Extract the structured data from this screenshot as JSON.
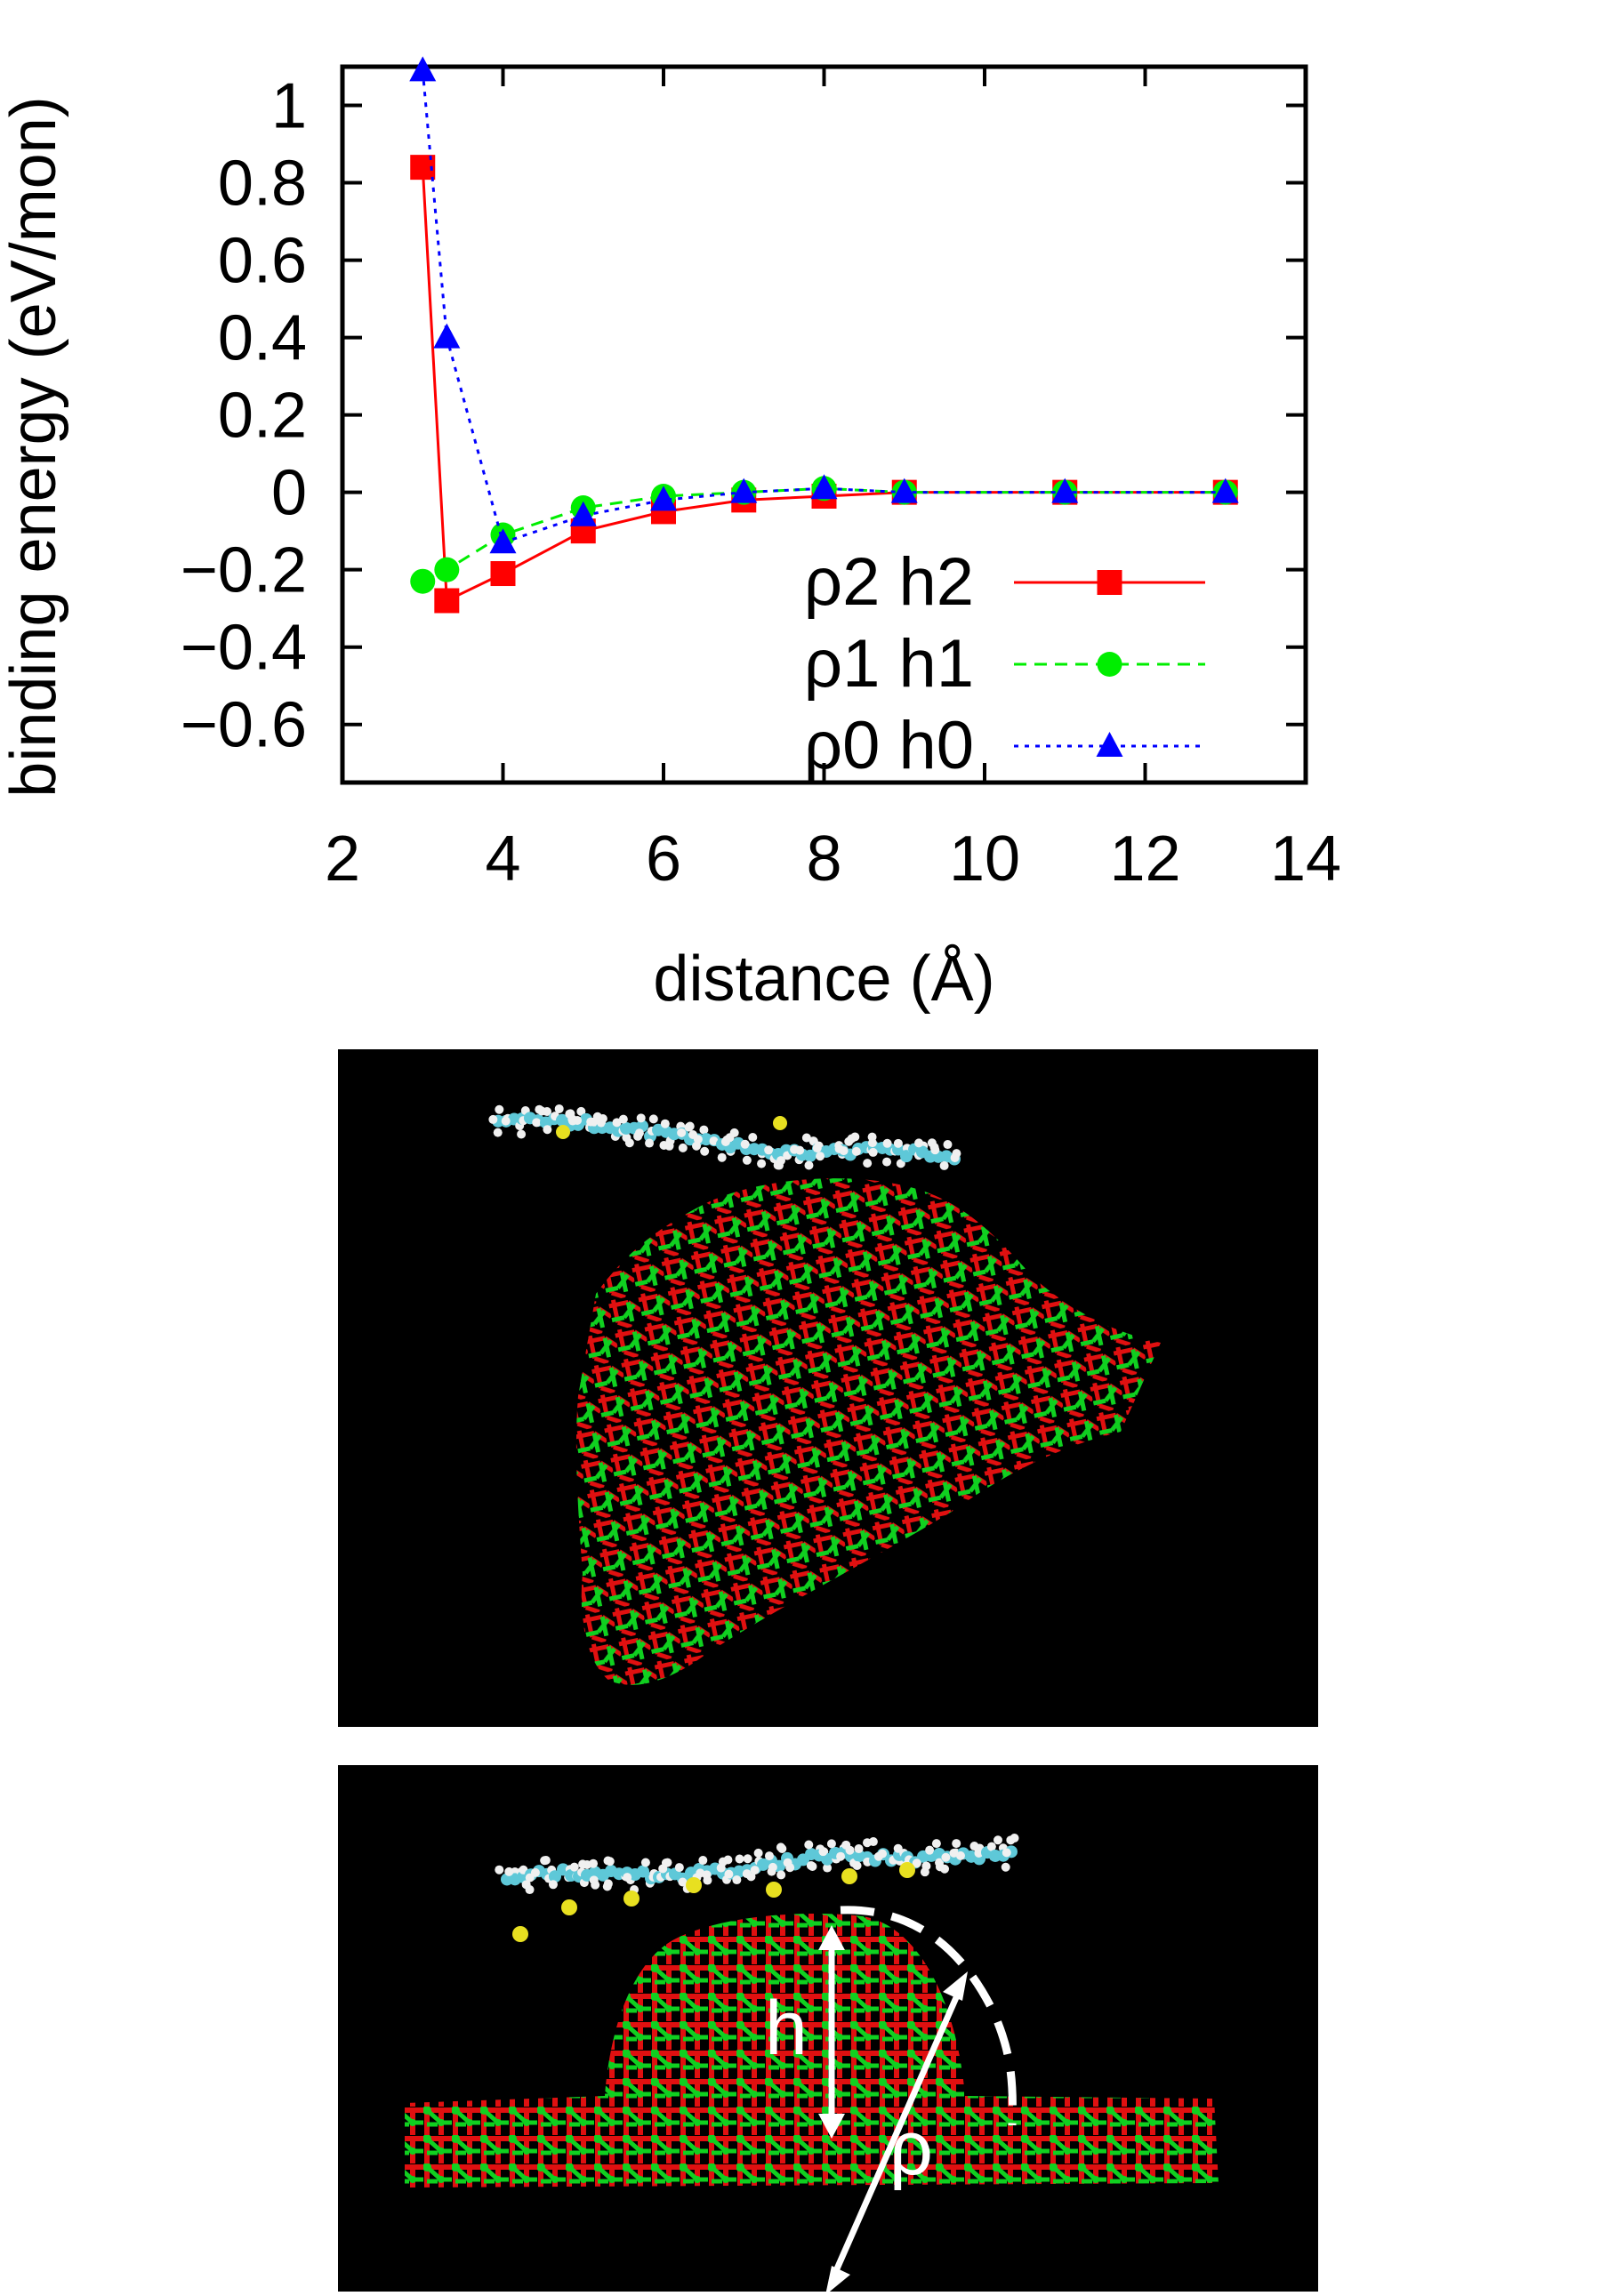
{
  "chart_data": {
    "type": "line",
    "title": "",
    "xlabel": "distance (Å)",
    "ylabel": "binding energy (eV/mon)",
    "xlim": [
      2,
      14
    ],
    "ylim": [
      -0.75,
      1.1
    ],
    "xticks": [
      2,
      4,
      6,
      8,
      10,
      12,
      14
    ],
    "xtick_labels": [
      "2",
      "4",
      "6",
      "8",
      "10",
      "12",
      "14"
    ],
    "yticks": [
      1,
      0.8,
      0.6,
      0.4,
      0.2,
      0,
      -0.2,
      -0.4,
      -0.6
    ],
    "ytick_labels": [
      "1",
      "0.8",
      "0.6",
      "0.4",
      "0.2",
      "0",
      "−0.2",
      "−0.4",
      "−0.6"
    ],
    "grid": false,
    "legend_position": "bottom-right",
    "series": [
      {
        "name": "ρ2 h2",
        "color": "#ff0000",
        "marker": "square",
        "line": "solid",
        "x": [
          3.0,
          3.3,
          4.0,
          5.0,
          6.0,
          7.0,
          8.0,
          9.0,
          11.0,
          13.0
        ],
        "y": [
          0.84,
          -0.28,
          -0.21,
          -0.1,
          -0.05,
          -0.02,
          -0.01,
          0.0,
          0.0,
          0.0
        ]
      },
      {
        "name": "ρ1 h1",
        "color": "#00ee00",
        "marker": "circle",
        "line": "dashed",
        "x": [
          3.0,
          3.3,
          4.0,
          5.0,
          6.0,
          7.0,
          8.0,
          9.0,
          11.0,
          13.0
        ],
        "y": [
          -0.23,
          -0.2,
          -0.11,
          -0.04,
          -0.01,
          0.0,
          0.01,
          0.0,
          0.0,
          0.0
        ]
      },
      {
        "name": "ρ0 h0",
        "color": "#0000ff",
        "marker": "triangle",
        "line": "dotted",
        "x": [
          3.0,
          3.3,
          4.0,
          5.0,
          6.0,
          7.0,
          8.0,
          9.0,
          11.0,
          13.0
        ],
        "y": [
          1.09,
          0.4,
          -0.13,
          -0.06,
          -0.02,
          0.0,
          0.01,
          0.0,
          0.0,
          0.0
        ]
      }
    ]
  },
  "bottom_panel": {
    "height_label": "h",
    "radius_label": "ρ"
  },
  "colors": {
    "lattice_red": "#e01010",
    "lattice_green": "#10d020",
    "molecule_cyan": "#5ec8d8",
    "molecule_white": "#f0f0f0",
    "molecule_yellow": "#e8e020",
    "panel_background": "#000000"
  }
}
